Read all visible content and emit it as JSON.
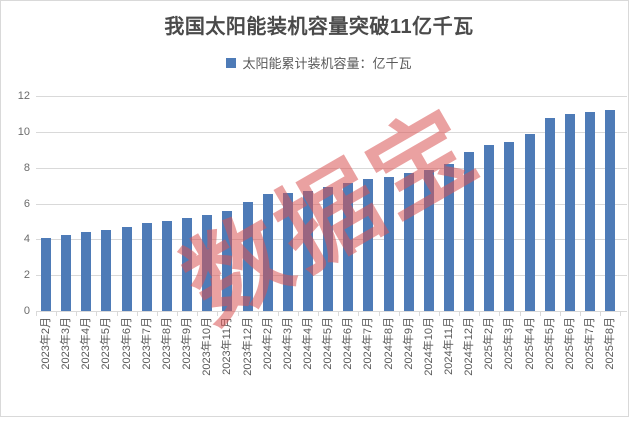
{
  "page": {
    "title": "我国太阳能装机容量突破11亿千瓦"
  },
  "legend": {
    "label": "太阳能累计装机容量：亿千瓦"
  },
  "watermark": {
    "text": "数据宝",
    "color": "rgba(217,84,84,0.55)"
  },
  "colors": {
    "bar": "#4E7BB7",
    "grid": "#D9D9D9",
    "frame": "#D9D9D9",
    "title_text": "#4A4A4A",
    "tick_text": "#6B6B6B",
    "xlabel_text": "#595959"
  },
  "chart_data": {
    "type": "bar",
    "title": "我国太阳能装机容量突破11亿千瓦",
    "legend": "太阳能累计装机容量：亿千瓦",
    "unit": "亿千瓦",
    "grid": "horizontal",
    "legend_position": "top",
    "ylim": [
      0,
      12
    ],
    "yticks": [
      0,
      2,
      4,
      6,
      8,
      10,
      12
    ],
    "categories": [
      "2023年2月",
      "2023年3月",
      "2023年4月",
      "2023年5月",
      "2023年6月",
      "2023年7月",
      "2023年8月",
      "2023年9月",
      "2023年10月",
      "2023年11月",
      "2023年12月",
      "2024年2月",
      "2024年3月",
      "2024年4月",
      "2024年5月",
      "2024年6月",
      "2024年7月",
      "2024年8月",
      "2024年9月",
      "2024年10月",
      "2024年11月",
      "2024年12月",
      "2025年2月",
      "2025年3月",
      "2025年4月",
      "2025年5月",
      "2025年6月",
      "2025年7月",
      "2025年8月"
    ],
    "values": [
      4.1,
      4.25,
      4.4,
      4.5,
      4.7,
      4.9,
      5.05,
      5.21,
      5.36,
      5.56,
      6.09,
      6.53,
      6.6,
      6.7,
      6.9,
      7.13,
      7.35,
      7.5,
      7.7,
      7.9,
      8.2,
      8.87,
      9.26,
      9.46,
      9.9,
      10.8,
      11.0,
      11.1,
      11.2
    ]
  }
}
